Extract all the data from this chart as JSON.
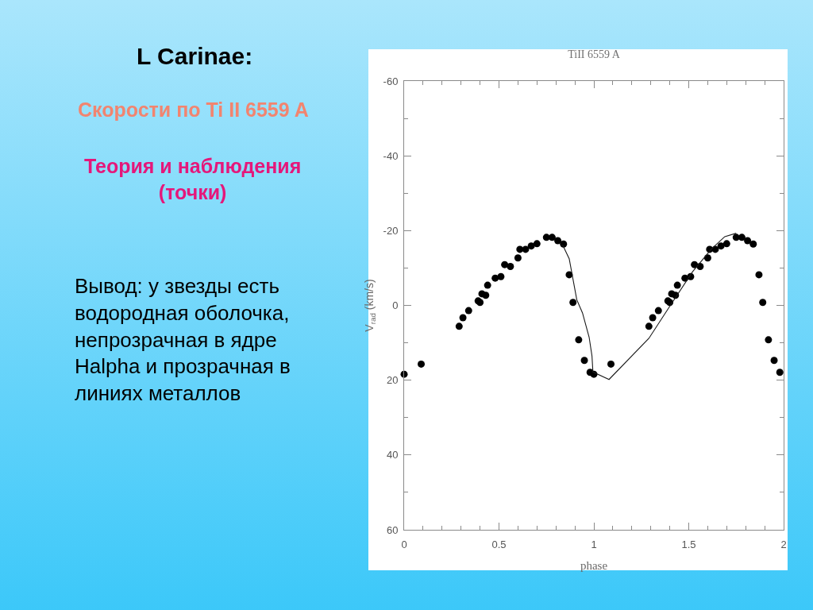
{
  "chart_data": {
    "type": "scatter",
    "title": "TiII 6559 A",
    "xlabel": "phase",
    "ylabel": "V$_{rad}$ (km/s)",
    "annotations": [
      "L Carinae:",
      "Скорости по Ti II 6559 A",
      "Теория и наблюдения\n(точки)",
      "Вывод: у звезды есть\nводородная оболочка,\nнепрозрачная в ядре\nHalpha и прозрачная в\nлиниях металлов"
    ],
    "xlim": [
      0,
      2
    ],
    "xticks": [
      0,
      {
        "value": 0.1,
        "label": null
      },
      {
        "value": 0.2,
        "label": null
      },
      {
        "value": 0.3,
        "label": null
      },
      {
        "value": 0.4,
        "label": null
      },
      0.5,
      {
        "value": 0.6,
        "label": null
      },
      {
        "value": 0.7,
        "label": null
      },
      {
        "value": 0.8,
        "label": null
      },
      {
        "value": 0.9,
        "label": null
      },
      1,
      {
        "value": 1.1,
        "label": null
      },
      {
        "value": 1.2,
        "label": null
      },
      {
        "value": 1.3,
        "label": null
      },
      {
        "value": 1.4,
        "label": null
      },
      1.5,
      {
        "value": 1.6,
        "label": null
      },
      {
        "value": 1.7,
        "label": null
      },
      {
        "value": 1.8,
        "label": null
      },
      {
        "value": 1.9,
        "label": null
      },
      2
    ],
    "ylim": [
      60,
      -60
    ],
    "yticks": [
      -60,
      {
        "value": -50,
        "label": null
      },
      -40,
      {
        "value": -30,
        "label": null
      },
      -20,
      {
        "value": -10,
        "label": null
      },
      0,
      {
        "value": 10,
        "label": null
      },
      20,
      {
        "value": 30,
        "label": null
      },
      40,
      {
        "value": 50,
        "label": null
      },
      60
    ],
    "series": [
      {
        "color": "#000000",
        "marker": "circle",
        "x": [
          0.0,
          0.09,
          0.29,
          0.31,
          0.34,
          0.39,
          0.4,
          0.41,
          0.43,
          0.44,
          0.48,
          0.51,
          0.53,
          0.56,
          0.6,
          0.61,
          0.64,
          0.67,
          0.7,
          0.75,
          0.78,
          0.81,
          0.84,
          0.87,
          0.89,
          0.92,
          0.95,
          0.98,
          1.0,
          1.09,
          1.29,
          1.31,
          1.34,
          1.39,
          1.4,
          1.41,
          1.43,
          1.44,
          1.48,
          1.51,
          1.53,
          1.56,
          1.6,
          1.61,
          1.64,
          1.67,
          1.7,
          1.75,
          1.78,
          1.81,
          1.84,
          1.87,
          1.89,
          1.92,
          1.95,
          1.98
        ],
        "values": [
          18.4,
          15.7,
          5.6,
          3.3,
          1.4,
          -1.2,
          -0.8,
          -3.1,
          -2.7,
          -5.4,
          -7.3,
          -7.7,
          -10.9,
          -10.4,
          -12.7,
          -15.0,
          -15.0,
          -15.9,
          -16.5,
          -18.2,
          -18.2,
          -17.3,
          -16.4,
          -8.2,
          -0.8,
          9.2,
          14.7,
          17.9,
          18.4,
          15.7,
          5.6,
          3.3,
          1.4,
          -1.2,
          -0.8,
          -3.1,
          -2.7,
          -5.4,
          -7.3,
          -7.7,
          -10.9,
          -10.4,
          -12.7,
          -15.0,
          -15.0,
          -15.9,
          -16.5,
          -18.2,
          -18.2,
          -17.3,
          -16.4,
          -8.2,
          -0.8,
          9.2,
          14.7,
          17.9
        ]
      },
      {
        "type": "line",
        "color": "#1a1a1a",
        "line_style": "solid",
        "x": [
          0.835,
          0.87,
          0.91,
          0.94,
          0.975,
          0.99,
          0.995,
          1.08,
          1.29,
          1.39,
          1.52,
          1.62,
          1.69,
          1.75
        ],
        "values": [
          -16.2,
          -12.5,
          -1.5,
          2.0,
          8.5,
          13.5,
          17.8,
          19.8,
          8.8,
          1.0,
          -9.0,
          -15.1,
          -18.4,
          -19.3
        ]
      }
    ]
  }
}
